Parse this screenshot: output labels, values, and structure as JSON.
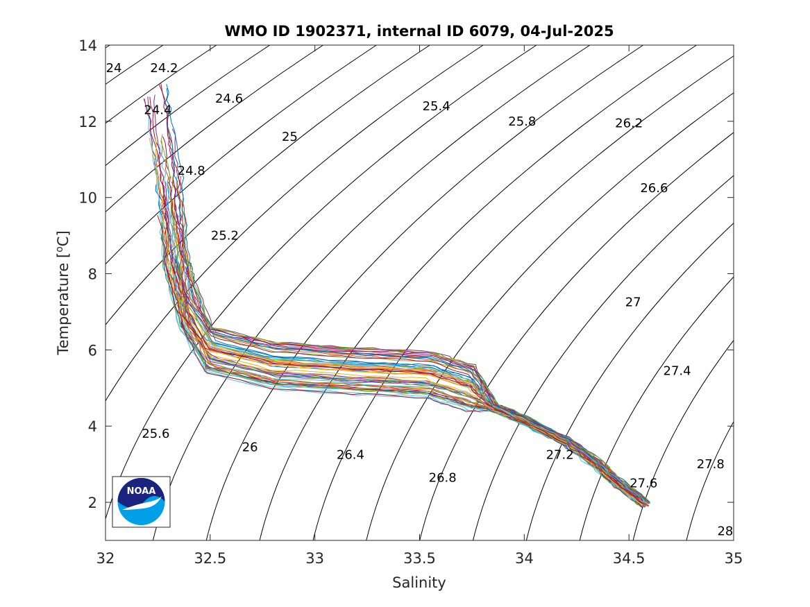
{
  "figure": {
    "title": "WMO ID 1902371, internal ID 6079, 04-Jul-2025"
  },
  "chart_data": {
    "type": "line",
    "title": "WMO ID 1902371, internal ID 6079, 04-Jul-2025",
    "xlabel": "Salinity",
    "ylabel_main": "Temperature [",
    "ylabel_sup": "o",
    "ylabel_end": "C]",
    "xlim": [
      32,
      35
    ],
    "ylim": [
      1,
      14
    ],
    "x_ticks": [
      32,
      32.5,
      33,
      33.5,
      34,
      34.5,
      35
    ],
    "x_tick_labels": [
      "32",
      "32.5",
      "33",
      "33.5",
      "34",
      "34.5",
      "35"
    ],
    "y_ticks": [
      2,
      4,
      6,
      8,
      10,
      12,
      14
    ],
    "y_tick_labels": [
      "2",
      "4",
      "6",
      "8",
      "10",
      "12",
      "14"
    ],
    "grid": false,
    "isopycnals": {
      "levels": [
        24,
        24.2,
        24.4,
        24.6,
        24.8,
        25,
        25.2,
        25.4,
        25.6,
        25.8,
        26,
        26.2,
        26.4,
        26.6,
        26.8,
        27,
        27.2,
        27.4,
        27.6,
        27.8,
        28
      ],
      "labels": [
        {
          "text": "24",
          "s": 32.04,
          "t": 13.4
        },
        {
          "text": "24.2",
          "s": 32.28,
          "t": 13.4
        },
        {
          "text": "24.4",
          "s": 32.25,
          "t": 12.3
        },
        {
          "text": "24.6",
          "s": 32.59,
          "t": 12.6
        },
        {
          "text": "24.8",
          "s": 32.41,
          "t": 10.7
        },
        {
          "text": "25",
          "s": 32.88,
          "t": 11.6
        },
        {
          "text": "25.2",
          "s": 32.57,
          "t": 9.0
        },
        {
          "text": "25.4",
          "s": 33.58,
          "t": 12.4
        },
        {
          "text": "25.6",
          "s": 32.24,
          "t": 3.8
        },
        {
          "text": "25.8",
          "s": 33.99,
          "t": 12.0
        },
        {
          "text": "26",
          "s": 32.69,
          "t": 3.45
        },
        {
          "text": "26.2",
          "s": 34.5,
          "t": 11.95
        },
        {
          "text": "26.4",
          "s": 33.17,
          "t": 3.25
        },
        {
          "text": "26.6",
          "s": 34.62,
          "t": 10.25
        },
        {
          "text": "26.8",
          "s": 33.61,
          "t": 2.65
        },
        {
          "text": "27",
          "s": 34.52,
          "t": 7.25
        },
        {
          "text": "27.2",
          "s": 34.17,
          "t": 3.25
        },
        {
          "text": "27.4",
          "s": 34.73,
          "t": 5.45
        },
        {
          "text": "27.6",
          "s": 34.57,
          "t": 2.5
        },
        {
          "text": "27.8",
          "s": 34.89,
          "t": 3.0
        },
        {
          "text": "28",
          "s": 34.96,
          "t": 1.25
        }
      ]
    },
    "series_colors": [
      "#0072BD",
      "#D95319",
      "#EDB120",
      "#7E2F8E",
      "#77AC30",
      "#4DBEEE",
      "#A2142F"
    ],
    "profile_count": 56,
    "mean_profile": {
      "s": [
        32.22,
        32.24,
        32.27,
        32.3,
        32.32,
        32.34,
        32.38,
        32.5,
        32.8,
        33.2,
        33.55,
        33.75,
        33.85,
        34.0,
        34.2,
        34.35,
        34.45,
        34.58
      ],
      "t": [
        13.7,
        12.8,
        11.6,
        10.5,
        9.5,
        8.3,
        7.1,
        6.0,
        5.6,
        5.45,
        5.35,
        5.0,
        4.5,
        4.15,
        3.6,
        3.0,
        2.5,
        1.95
      ]
    },
    "logo": {
      "text": "NOAA",
      "colors": {
        "top": "#1a237e",
        "bottom": "#00a0e9",
        "bird": "#ffffff"
      }
    }
  }
}
